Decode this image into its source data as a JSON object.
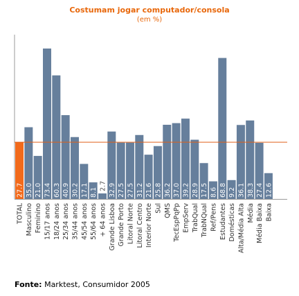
{
  "chart_data": {
    "type": "bar",
    "title": "Costumam jogar computador/consola",
    "subtitle": "(em %)",
    "categories": [
      "TOTAL",
      "Masculino",
      "Feminino",
      "15/17 anos",
      "18/24 anos",
      "25/34 anos",
      "35/44 anos",
      "45/54 anos",
      "55/64 anos",
      "+ 64 anos",
      "Grande Lisboa",
      "Grande Porto",
      "Litoral Norte",
      "Litoral Centro",
      "Interior Norte",
      "Sul",
      "QMS",
      "TecEspPqPp",
      "EmpServ",
      "TrabQual",
      "TrabNQual",
      "Ref/Pens",
      "Estudantes",
      "Domésticas",
      "Alta/Média Alta",
      "Média",
      "Média Baixa",
      "Baixa"
    ],
    "values": [
      27.7,
      35.0,
      21.0,
      73.4,
      60.3,
      40.9,
      30.2,
      17.1,
      8.1,
      2.7,
      32.9,
      27.5,
      27.5,
      31.2,
      21.6,
      25.8,
      36.2,
      37.0,
      39.2,
      28.9,
      17.5,
      8.6,
      68.8,
      9.2,
      36.1,
      38.3,
      27.4,
      12.6
    ],
    "value_labels": [
      "27.7",
      "35.0",
      "21.0",
      "73.4",
      "60.3",
      "40.9",
      "30.2",
      "17.1",
      "8.1",
      "2.7",
      "32.9",
      "27.5",
      "27.5",
      "31.2",
      "21.6",
      "25.8",
      "36.2",
      "37.0",
      "39.2",
      "28.9",
      "17.5",
      "8.6",
      "68.8",
      "9.2",
      "36.1",
      "38.3",
      "27.4",
      "12.6"
    ],
    "reference_line": 27.7,
    "ylim": [
      0,
      73.4
    ],
    "grid": false,
    "colors": {
      "total": "#f26a1b",
      "bars": "#667f9c",
      "reference_line": "#e0621a",
      "axis": "#999999"
    }
  },
  "source": {
    "label": "Fonte:",
    "text": " Marktest, Consumidor 2005"
  }
}
